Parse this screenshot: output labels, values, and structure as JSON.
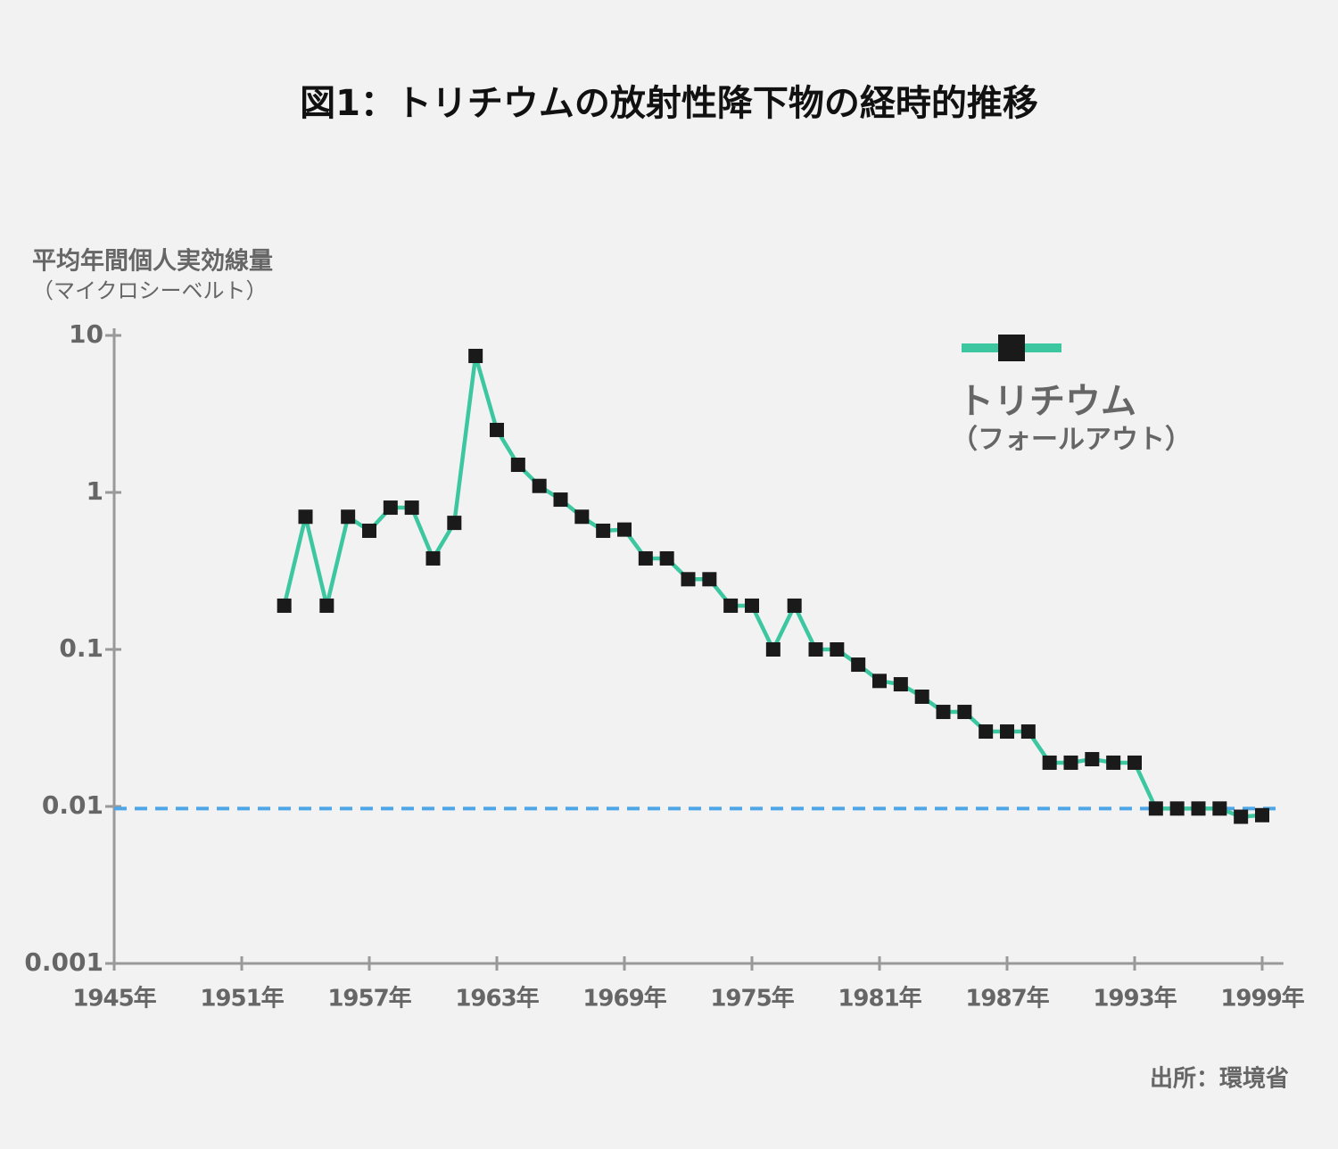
{
  "chart_data": {
    "type": "line",
    "title": "図1：トリチウムの放射性降下物の経時的推移",
    "y_label": [
      "平均年間個人実効線量",
      "（マイクロシーベルト）"
    ],
    "source": "出所：環境省",
    "x": [
      1953,
      1954,
      1955,
      1956,
      1957,
      1958,
      1959,
      1960,
      1961,
      1962,
      1963,
      1964,
      1965,
      1966,
      1967,
      1968,
      1969,
      1970,
      1971,
      1972,
      1973,
      1974,
      1975,
      1976,
      1977,
      1978,
      1979,
      1980,
      1981,
      1982,
      1983,
      1984,
      1985,
      1986,
      1987,
      1988,
      1989,
      1990,
      1991,
      1992,
      1993,
      1994,
      1995,
      1996,
      1997,
      1998,
      1999
    ],
    "series": [
      {
        "name": "トリチウム",
        "color": "#3cc7a0",
        "marker_color": "#1a1a1a",
        "values": [
          0.19,
          0.7,
          0.19,
          0.7,
          0.57,
          0.8,
          0.8,
          0.38,
          0.64,
          7.4,
          2.5,
          1.5,
          1.1,
          0.9,
          0.7,
          0.57,
          0.58,
          0.38,
          0.38,
          0.28,
          0.28,
          0.19,
          0.19,
          0.1,
          0.19,
          0.1,
          0.1,
          0.08,
          0.063,
          0.06,
          0.05,
          0.04,
          0.04,
          0.03,
          0.03,
          0.03,
          0.019,
          0.019,
          0.02,
          0.019,
          0.019,
          0.0097,
          0.0097,
          0.0097,
          0.0097,
          0.0086,
          0.0088
        ]
      }
    ],
    "legend_note": "（フォールアウト）",
    "legend": "upper right",
    "hline": {
      "value": 0.0097,
      "color": "#4da6e8"
    },
    "xlim": [
      1945,
      2000
    ],
    "xticks": [
      {
        "value": 1945,
        "label": "1945年"
      },
      {
        "value": 1951,
        "label": "1951年"
      },
      {
        "value": 1957,
        "label": "1957年"
      },
      {
        "value": 1963,
        "label": "1963年"
      },
      {
        "value": 1969,
        "label": "1969年"
      },
      {
        "value": 1975,
        "label": "1975年"
      },
      {
        "value": 1981,
        "label": "1981年"
      },
      {
        "value": 1987,
        "label": "1987年"
      },
      {
        "value": 1993,
        "label": "1993年"
      },
      {
        "value": 1999,
        "label": "1999年"
      }
    ],
    "ylim": [
      0.001,
      10
    ],
    "yticks": [
      0.001,
      0.01,
      0.1,
      1,
      10
    ],
    "log_y": true
  }
}
